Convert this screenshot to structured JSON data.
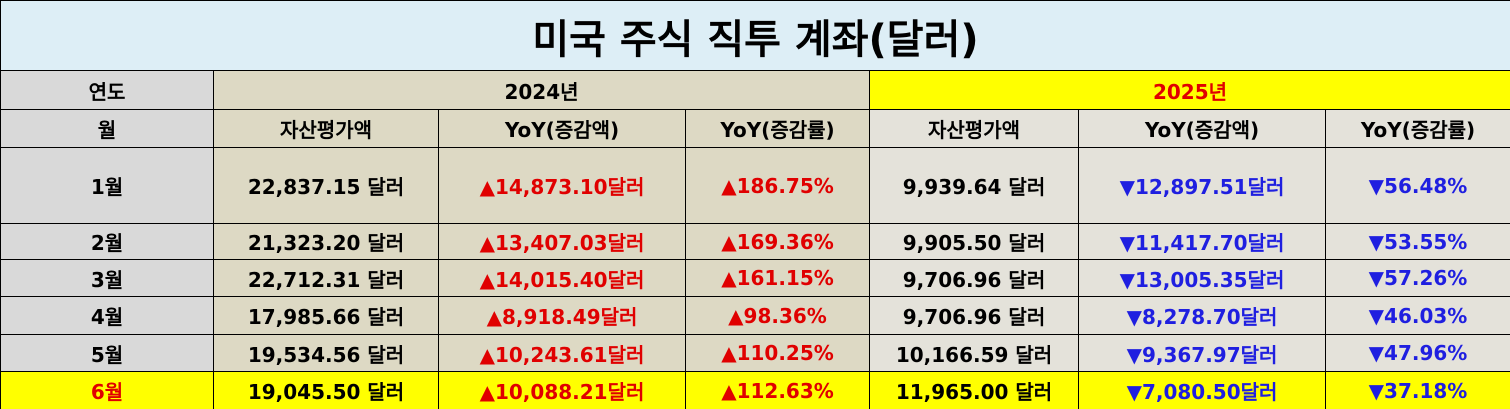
{
  "title": "미국 주식 직투 계좌(달러)",
  "header": {
    "year_label": "연도",
    "years": [
      "2024년",
      "2025년"
    ],
    "month_label": "월",
    "columns": [
      "자산평가액",
      "YoY(증감액)",
      "YoY(증감률)",
      "자산평가액",
      "YoY(증감액)",
      "YoY(증감률)"
    ]
  },
  "table": {
    "rows": [
      [
        "1월",
        "22,837.15 달러",
        "▲14,873.10달러",
        "▲186.75%",
        "9,939.64 달러",
        "▼12,897.51달러",
        "▼56.48%"
      ],
      [
        "2월",
        "21,323.20 달러",
        "▲13,407.03달러",
        "▲169.36%",
        "9,905.50 달러",
        "▼11,417.70달러",
        "▼53.55%"
      ],
      [
        "3월",
        "22,712.31 달러",
        "▲14,015.40달러",
        "▲161.15%",
        "9,706.96 달러",
        "▼13,005.35달러",
        "▼57.26%"
      ],
      [
        "4월",
        "17,985.66 달러",
        "▲8,918.49달러",
        "▲98.36%",
        "9,706.96 달러",
        "▼8,278.70달러",
        "▼46.03%"
      ],
      [
        "5월",
        "19,534.56 달러",
        "▲10,243.61달러",
        "▲110.25%",
        "10,166.59 달러",
        "▼9,367.97달러",
        "▼47.96%"
      ],
      [
        "6월",
        "19,045.50 달러",
        "▲10,088.21달러",
        "▲112.63%",
        "11,965.00 달러",
        "▼7,080.50달러",
        "▼37.18%"
      ]
    ]
  }
}
